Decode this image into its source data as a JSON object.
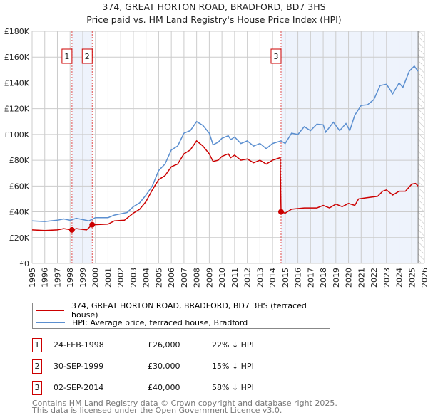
{
  "chart_data": {
    "type": "line",
    "title": "374, GREAT HORTON ROAD, BRADFORD, BD7 3HS",
    "subtitle": "Price paid vs. HM Land Registry's House Price Index (HPI)",
    "xlim": [
      1995,
      2026
    ],
    "ylim": [
      0,
      180000
    ],
    "x_ticks": [
      "1995",
      "1996",
      "1997",
      "1998",
      "1999",
      "2000",
      "2001",
      "2002",
      "2003",
      "2004",
      "2005",
      "2006",
      "2007",
      "2008",
      "2009",
      "2010",
      "2011",
      "2012",
      "2013",
      "2014",
      "2015",
      "2016",
      "2017",
      "2018",
      "2019",
      "2020",
      "2021",
      "2022",
      "2023",
      "2024",
      "2025",
      "2026"
    ],
    "y_ticks": [
      {
        "v": 0,
        "label": "£0"
      },
      {
        "v": 20000,
        "label": "£20K"
      },
      {
        "v": 40000,
        "label": "£40K"
      },
      {
        "v": 60000,
        "label": "£60K"
      },
      {
        "v": 80000,
        "label": "£80K"
      },
      {
        "v": 100000,
        "label": "£100K"
      },
      {
        "v": 120000,
        "label": "£120K"
      },
      {
        "v": 140000,
        "label": "£140K"
      },
      {
        "v": 160000,
        "label": "£160K"
      },
      {
        "v": 180000,
        "label": "£180K"
      }
    ],
    "grid": true,
    "colors": {
      "property": "#cc0000",
      "hpi": "#5b8fd0",
      "shade": "#eef3fc",
      "grid": "#cccccc"
    },
    "shaded_ranges": [
      [
        1998.15,
        1999.75
      ],
      [
        2014.67,
        2025.5
      ]
    ],
    "forecast_hatch_from": 2025.5,
    "series": [
      {
        "name": "374, GREAT HORTON ROAD, BRADFORD, BD7 3HS (terraced house)",
        "color": "#cc0000",
        "x": [
          1995,
          1996,
          1997,
          1997.5,
          1998.15,
          1998.5,
          1999.3,
          1999.75,
          2001,
          2001.5,
          2002.3,
          2003,
          2003.5,
          2004,
          2004.5,
          2005,
          2005.5,
          2006,
          2006.5,
          2007,
          2007.5,
          2008,
          2008.5,
          2009,
          2009.3,
          2009.7,
          2010,
          2010.5,
          2010.7,
          2011,
          2011.5,
          2012,
          2012.5,
          2013,
          2013.5,
          2014,
          2014.6,
          2014.67,
          2015,
          2015.5,
          2016.5,
          2017.5,
          2018,
          2018.5,
          2019,
          2019.5,
          2020,
          2020.5,
          2020.8,
          2021.5,
          2022.3,
          2022.7,
          2023,
          2023.5,
          2024,
          2024.5,
          2025,
          2025.3,
          2025.5
        ],
        "y": [
          26000,
          25500,
          26000,
          27000,
          26000,
          27000,
          26000,
          30000,
          30500,
          33000,
          33500,
          39000,
          42000,
          48000,
          57000,
          65000,
          68000,
          75000,
          77000,
          85000,
          88000,
          95000,
          91000,
          85000,
          79000,
          80000,
          83000,
          85000,
          82000,
          84000,
          80000,
          81000,
          78000,
          80000,
          77000,
          80000,
          82000,
          40000,
          39000,
          42000,
          43000,
          43000,
          45000,
          43000,
          46000,
          44000,
          46500,
          45000,
          50000,
          51000,
          52000,
          56000,
          57000,
          53000,
          56000,
          56000,
          61500,
          62000,
          60000
        ]
      },
      {
        "name": "HPI: Average price, terraced house, Bradford",
        "color": "#5b8fd0",
        "x": [
          1995,
          1996,
          1997,
          1997.5,
          1998,
          1998.5,
          1999.5,
          2000,
          2001,
          2001.5,
          2002,
          2002.5,
          2003,
          2003.5,
          2004,
          2004.5,
          2005,
          2005.5,
          2006,
          2006.5,
          2007,
          2007.5,
          2008,
          2008.5,
          2009,
          2009.3,
          2009.7,
          2010,
          2010.5,
          2010.7,
          2011,
          2011.5,
          2012,
          2012.5,
          2013,
          2013.5,
          2014,
          2014.67,
          2015,
          2015.5,
          2016,
          2016.5,
          2017,
          2017.5,
          2018,
          2018.2,
          2018.8,
          2019.3,
          2019.8,
          2020.1,
          2020.5,
          2021,
          2021.5,
          2022,
          2022.5,
          2023,
          2023.5,
          2024,
          2024.3,
          2024.8,
          2025.2,
          2025.5
        ],
        "y": [
          33000,
          32500,
          33500,
          34500,
          33500,
          35000,
          33000,
          35500,
          35500,
          37500,
          38500,
          39500,
          44000,
          47000,
          53000,
          60000,
          72000,
          77000,
          88000,
          91000,
          101000,
          103000,
          110000,
          107000,
          101000,
          92000,
          94000,
          97000,
          99000,
          96000,
          98000,
          93000,
          95000,
          91000,
          93000,
          89000,
          93000,
          95000,
          93000,
          101000,
          100000,
          106000,
          103000,
          108000,
          107500,
          101800,
          109500,
          103000,
          108500,
          103000,
          115000,
          122500,
          123000,
          127000,
          138000,
          139000,
          131600,
          140000,
          136500,
          149000,
          153000,
          149000
        ]
      }
    ],
    "markers": [
      {
        "id": "1",
        "x": 1998.15,
        "y": 26000
      },
      {
        "id": "2",
        "x": 1999.75,
        "y": 30000
      },
      {
        "id": "3",
        "x": 2014.67,
        "y": 40000
      }
    ]
  },
  "legend": {
    "property_label": "374, GREAT HORTON ROAD, BRADFORD, BD7 3HS (terraced house)",
    "hpi_label": "HPI: Average price, terraced house, Bradford"
  },
  "transactions": [
    {
      "id": "1",
      "date": "24-FEB-1998",
      "price": "£26,000",
      "vs_hpi": "22% ↓ HPI"
    },
    {
      "id": "2",
      "date": "30-SEP-1999",
      "price": "£30,000",
      "vs_hpi": "15% ↓ HPI"
    },
    {
      "id": "3",
      "date": "02-SEP-2014",
      "price": "£40,000",
      "vs_hpi": "58% ↓ HPI"
    }
  ],
  "footer": {
    "line1": "Contains HM Land Registry data © Crown copyright and database right 2025.",
    "line2": "This data is licensed under the Open Government Licence v3.0."
  }
}
